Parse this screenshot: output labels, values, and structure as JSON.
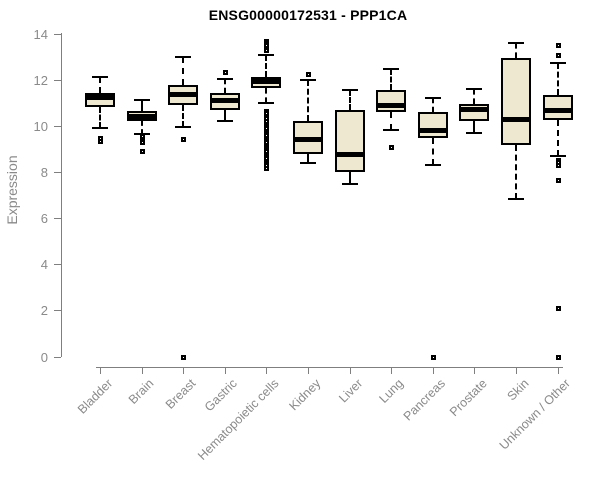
{
  "chart_data": {
    "type": "boxplot",
    "title": "ENSG00000172531 - PPP1CA",
    "ylabel": "Expression",
    "xlabel": "",
    "ylim": [
      0,
      14
    ],
    "yticks": [
      0,
      2,
      4,
      6,
      8,
      10,
      12,
      14
    ],
    "grid": false,
    "legend": "none",
    "colors": {
      "box_fill": "#EEE8D1",
      "box_border": "#000000",
      "median": "#000000",
      "axis": "#7f7f7f",
      "tick_text": "#8a8a8a",
      "title_text": "#000000"
    },
    "categories": [
      "Bladder",
      "Brain",
      "Breast",
      "Gastric",
      "Hematopoietic cells",
      "Kidney",
      "Liver",
      "Lung",
      "Pancreas",
      "Prostate",
      "Skin",
      "Unknown / Other"
    ],
    "boxes": [
      {
        "name": "Bladder",
        "whisker_low": 9.9,
        "q1": 10.85,
        "median": 11.25,
        "q3": 11.45,
        "whisker_high": 12.15,
        "outliers": [
          9.5,
          9.35
        ]
      },
      {
        "name": "Brain",
        "whisker_low": 9.65,
        "q1": 10.2,
        "median": 10.45,
        "q3": 10.65,
        "whisker_high": 11.15,
        "outliers": [
          9.55,
          9.4,
          9.3,
          8.9
        ]
      },
      {
        "name": "Breast",
        "whisker_low": 9.95,
        "q1": 10.9,
        "median": 11.4,
        "q3": 11.8,
        "whisker_high": 13.0,
        "outliers": [
          9.45,
          0
        ]
      },
      {
        "name": "Gastric",
        "whisker_low": 10.2,
        "q1": 10.7,
        "median": 11.15,
        "q3": 11.45,
        "whisker_high": 12.05,
        "outliers": [
          12.35
        ]
      },
      {
        "name": "Hematopoietic cells",
        "whisker_low": 11.0,
        "q1": 11.65,
        "median": 11.95,
        "q3": 12.15,
        "whisker_high": 13.1,
        "outliers": [
          13.7,
          13.6,
          13.5,
          13.4,
          13.3,
          10.65,
          10.55,
          10.45,
          10.35,
          10.2,
          10.1,
          10.0,
          9.9,
          9.8,
          9.7,
          9.6,
          9.5,
          9.4,
          9.3,
          9.2,
          9.1,
          9.0,
          8.9,
          8.8,
          8.7,
          8.6,
          8.5,
          8.4,
          8.3,
          8.2
        ]
      },
      {
        "name": "Kidney",
        "whisker_low": 8.4,
        "q1": 8.8,
        "median": 9.45,
        "q3": 10.2,
        "whisker_high": 12.0,
        "outliers": [
          12.25
        ]
      },
      {
        "name": "Liver",
        "whisker_low": 7.5,
        "q1": 8.0,
        "median": 8.8,
        "q3": 10.7,
        "whisker_high": 11.55,
        "outliers": []
      },
      {
        "name": "Lung",
        "whisker_low": 9.85,
        "q1": 10.6,
        "median": 10.9,
        "q3": 11.55,
        "whisker_high": 12.5,
        "outliers": [
          9.1
        ]
      },
      {
        "name": "Pancreas",
        "whisker_low": 8.3,
        "q1": 9.5,
        "median": 9.85,
        "q3": 10.6,
        "whisker_high": 11.2,
        "outliers": [
          0
        ]
      },
      {
        "name": "Prostate",
        "whisker_low": 9.7,
        "q1": 10.2,
        "median": 10.75,
        "q3": 10.95,
        "whisker_high": 11.6,
        "outliers": []
      },
      {
        "name": "Skin",
        "whisker_low": 6.85,
        "q1": 9.2,
        "median": 10.3,
        "q3": 12.95,
        "whisker_high": 13.6,
        "outliers": []
      },
      {
        "name": "Unknown / Other",
        "whisker_low": 8.7,
        "q1": 10.25,
        "median": 10.7,
        "q3": 11.35,
        "whisker_high": 12.75,
        "outliers": [
          13.5,
          13.1,
          8.55,
          8.45,
          8.3,
          7.65,
          2.1,
          0
        ]
      }
    ]
  }
}
